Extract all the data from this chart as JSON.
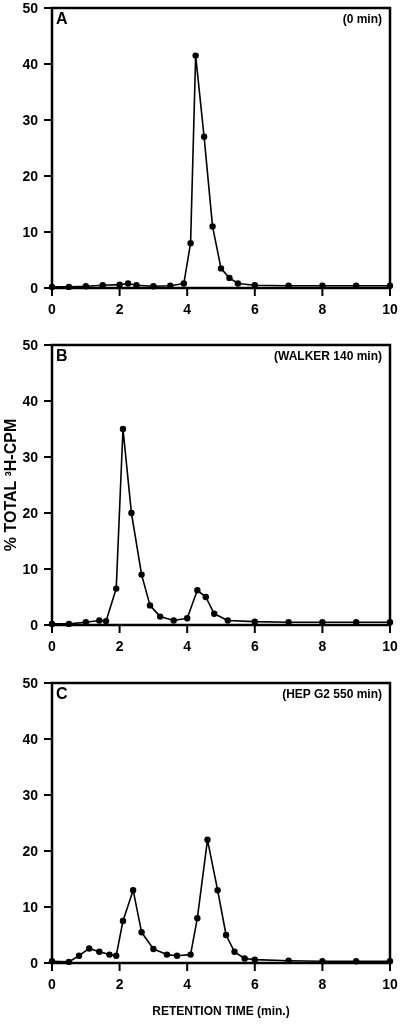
{
  "chart_data": [
    {
      "type": "line",
      "annotations": [
        "A",
        "(0 min)"
      ],
      "xlim": [
        0,
        10
      ],
      "xticks": [
        0,
        2,
        4,
        6,
        8,
        10
      ],
      "ylim": [
        0,
        50
      ],
      "yticks": [
        0,
        10,
        20,
        30,
        40,
        50
      ],
      "marker": "circle",
      "color": "#000000",
      "x": [
        0,
        0.5,
        1,
        1.5,
        2,
        2.25,
        2.5,
        3,
        3.5,
        3.9,
        4.1,
        4.25,
        4.5,
        4.75,
        5,
        5.25,
        5.5,
        6,
        7,
        8,
        9,
        10
      ],
      "values": [
        0.2,
        0.2,
        0.3,
        0.5,
        0.6,
        0.8,
        0.5,
        0.3,
        0.4,
        0.8,
        8,
        41.5,
        27,
        11,
        3.5,
        1.8,
        0.8,
        0.5,
        0.4,
        0.4,
        0.4,
        0.4
      ]
    },
    {
      "type": "line",
      "ylabel": "% TOTAL ³H-CPM",
      "annotations": [
        "B",
        "(WALKER 140 min)"
      ],
      "xlim": [
        0,
        10
      ],
      "xticks": [
        0,
        2,
        4,
        6,
        8,
        10
      ],
      "ylim": [
        0,
        50
      ],
      "yticks": [
        0,
        10,
        20,
        30,
        40,
        50
      ],
      "marker": "circle",
      "color": "#000000",
      "x": [
        0,
        0.5,
        1,
        1.4,
        1.6,
        1.9,
        2.1,
        2.35,
        2.65,
        2.9,
        3.2,
        3.6,
        4.0,
        4.3,
        4.55,
        4.8,
        5.2,
        6,
        7,
        8,
        9,
        10
      ],
      "values": [
        0.2,
        0.2,
        0.5,
        0.8,
        0.7,
        6.5,
        35,
        20,
        9,
        3.5,
        1.5,
        0.8,
        1.2,
        6.2,
        5,
        2,
        0.8,
        0.6,
        0.5,
        0.5,
        0.5,
        0.5
      ]
    },
    {
      "type": "line",
      "xlabel": "RETENTION TIME (min.)",
      "annotations": [
        "C",
        "(HEP G2 550 min)"
      ],
      "xlim": [
        0,
        10
      ],
      "xticks": [
        0,
        2,
        4,
        6,
        8,
        10
      ],
      "ylim": [
        0,
        50
      ],
      "yticks": [
        0,
        10,
        20,
        30,
        40,
        50
      ],
      "marker": "circle",
      "color": "#000000",
      "x": [
        0,
        0.5,
        0.8,
        1.1,
        1.4,
        1.7,
        1.9,
        2.1,
        2.4,
        2.65,
        3.0,
        3.4,
        3.7,
        4.1,
        4.3,
        4.6,
        4.9,
        5.15,
        5.4,
        5.7,
        6,
        7,
        8,
        9,
        10
      ],
      "values": [
        0.3,
        0.2,
        1.3,
        2.6,
        2,
        1.5,
        1.3,
        7.5,
        13,
        5.5,
        2.5,
        1.5,
        1.3,
        1.5,
        8,
        22,
        13,
        5,
        2,
        0.8,
        0.6,
        0.4,
        0.3,
        0.3,
        0.3
      ]
    }
  ]
}
